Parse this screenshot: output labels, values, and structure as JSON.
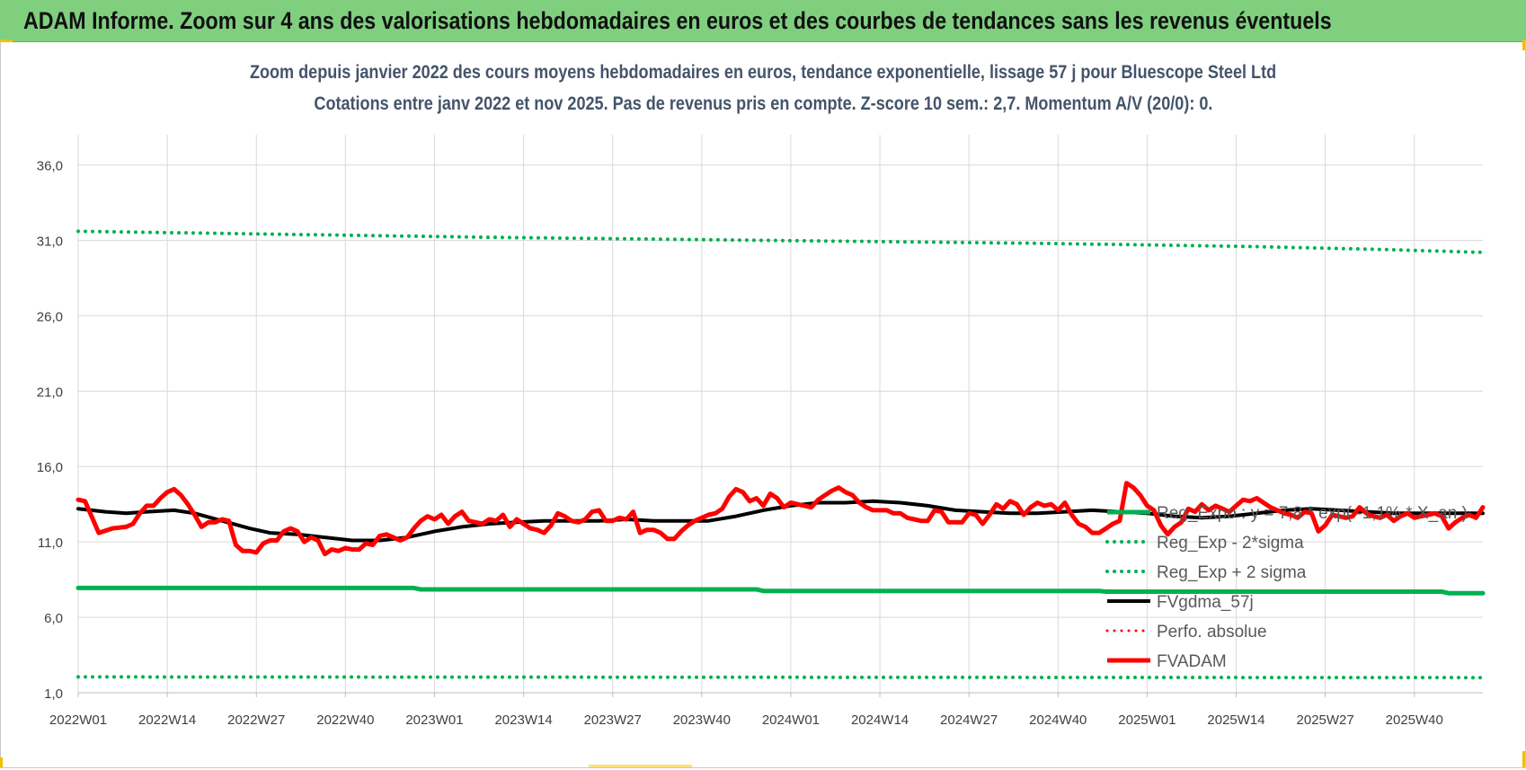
{
  "banner": {
    "title": "ADAM Informe. Zoom sur 4 ans des valorisations hebdomadaires en euros et des courbes de tendances sans les revenus éventuels",
    "background": "#7fcf7f"
  },
  "chart_data": {
    "type": "line",
    "title": "Zoom depuis janvier 2022 des cours moyens hebdomadaires en euros, tendance exponentielle, lissage 57 j pour Bluescope Steel Ltd",
    "subtitle": "Cotations entre janv 2022 et nov 2025. Pas de revenus pris en compte. Z-score 10 sem.: 2,7. Momentum A/V (20/0): 0.",
    "xlabel": "",
    "ylabel": "",
    "ylim": [
      1,
      38
    ],
    "yticks": [
      1,
      6,
      11,
      16,
      21,
      26,
      31,
      36
    ],
    "ytick_labels": [
      "1,0",
      "6,0",
      "11,0",
      "16,0",
      "21,0",
      "26,0",
      "31,0",
      "36,0"
    ],
    "x_range": [
      0,
      205
    ],
    "xticks": [
      0,
      13,
      26,
      39,
      52,
      65,
      78,
      91,
      104,
      117,
      130,
      143,
      156,
      169,
      182,
      195
    ],
    "xtick_labels": [
      "2022W01",
      "2022W14",
      "2022W27",
      "2022W40",
      "2023W01",
      "2023W14",
      "2023W27",
      "2023W40",
      "2024W01",
      "2024W14",
      "2024W27",
      "2024W40",
      "2025W01",
      "2025W14",
      "2025W27",
      "2025W40"
    ],
    "grid": true,
    "legend_position": "bottom-right",
    "series": [
      {
        "name": "Reg_Expo : y = 7,8 * exp( -1,1% * X_an )",
        "color": "#00b050",
        "style": "solid",
        "width": 5,
        "points": [
          [
            0,
            7.95
          ],
          [
            49,
            7.95
          ],
          [
            50,
            7.85
          ],
          [
            99,
            7.85
          ],
          [
            100,
            7.75
          ],
          [
            149,
            7.75
          ],
          [
            150,
            7.7
          ],
          [
            199,
            7.7
          ],
          [
            200,
            7.6
          ],
          [
            205,
            7.6
          ]
        ]
      },
      {
        "name": "Reg_Exp - 2*sigma",
        "color": "#00b050",
        "style": "dotted",
        "width": 4,
        "points": [
          [
            0,
            2.05
          ],
          [
            205,
            2.0
          ]
        ]
      },
      {
        "name": "Reg_Exp + 2 sigma",
        "color": "#00b050",
        "style": "dotted",
        "width": 4,
        "points": [
          [
            0,
            31.6
          ],
          [
            30,
            31.4
          ],
          [
            60,
            31.2
          ],
          [
            100,
            31.0
          ],
          [
            140,
            30.8
          ],
          [
            170,
            30.6
          ],
          [
            190,
            30.4
          ],
          [
            205,
            30.2
          ]
        ]
      },
      {
        "name": "FVgdma_57j",
        "color": "#000000",
        "style": "solid",
        "width": 4,
        "points": [
          [
            0,
            13.2
          ],
          [
            4,
            13.0
          ],
          [
            7,
            12.9
          ],
          [
            10,
            13.0
          ],
          [
            14,
            13.1
          ],
          [
            17,
            12.9
          ],
          [
            21,
            12.4
          ],
          [
            25,
            11.9
          ],
          [
            28,
            11.6
          ],
          [
            32,
            11.5
          ],
          [
            36,
            11.3
          ],
          [
            40,
            11.1
          ],
          [
            44,
            11.1
          ],
          [
            48,
            11.3
          ],
          [
            52,
            11.7
          ],
          [
            56,
            12.0
          ],
          [
            60,
            12.2
          ],
          [
            64,
            12.3
          ],
          [
            68,
            12.4
          ],
          [
            72,
            12.4
          ],
          [
            76,
            12.4
          ],
          [
            80,
            12.5
          ],
          [
            84,
            12.4
          ],
          [
            88,
            12.4
          ],
          [
            92,
            12.4
          ],
          [
            96,
            12.7
          ],
          [
            100,
            13.1
          ],
          [
            104,
            13.4
          ],
          [
            108,
            13.6
          ],
          [
            112,
            13.6
          ],
          [
            116,
            13.7
          ],
          [
            120,
            13.6
          ],
          [
            124,
            13.4
          ],
          [
            128,
            13.1
          ],
          [
            132,
            13.0
          ],
          [
            136,
            12.9
          ],
          [
            140,
            12.9
          ],
          [
            144,
            13.0
          ],
          [
            148,
            13.1
          ],
          [
            152,
            13.0
          ],
          [
            156,
            12.9
          ],
          [
            160,
            12.7
          ],
          [
            164,
            12.6
          ],
          [
            168,
            12.7
          ],
          [
            172,
            12.9
          ],
          [
            176,
            13.1
          ],
          [
            180,
            13.2
          ],
          [
            184,
            13.1
          ],
          [
            188,
            13.0
          ],
          [
            192,
            12.9
          ],
          [
            196,
            12.9
          ],
          [
            200,
            12.9
          ],
          [
            205,
            12.9
          ]
        ]
      },
      {
        "name": "Perfo. absolue",
        "color": "#ff0000",
        "style": "dotted",
        "width": 3,
        "points": []
      },
      {
        "name": "FVADAM",
        "color": "#ff0000",
        "style": "solid",
        "width": 5,
        "points": [
          [
            0,
            13.8
          ],
          [
            1,
            13.7
          ],
          [
            3,
            11.6
          ],
          [
            5,
            11.9
          ],
          [
            7,
            12.0
          ],
          [
            8,
            12.2
          ],
          [
            9,
            12.9
          ],
          [
            10,
            13.4
          ],
          [
            11,
            13.4
          ],
          [
            12,
            13.9
          ],
          [
            13,
            14.3
          ],
          [
            14,
            14.5
          ],
          [
            15,
            14.1
          ],
          [
            16,
            13.5
          ],
          [
            17,
            12.8
          ],
          [
            18,
            12.0
          ],
          [
            19,
            12.3
          ],
          [
            20,
            12.3
          ],
          [
            21,
            12.5
          ],
          [
            22,
            12.4
          ],
          [
            23,
            10.8
          ],
          [
            24,
            10.4
          ],
          [
            25,
            10.4
          ],
          [
            26,
            10.3
          ],
          [
            27,
            10.9
          ],
          [
            28,
            11.1
          ],
          [
            29,
            11.1
          ],
          [
            30,
            11.7
          ],
          [
            31,
            11.9
          ],
          [
            32,
            11.7
          ],
          [
            33,
            11.0
          ],
          [
            34,
            11.3
          ],
          [
            35,
            11.1
          ],
          [
            36,
            10.2
          ],
          [
            37,
            10.5
          ],
          [
            38,
            10.4
          ],
          [
            39,
            10.6
          ],
          [
            40,
            10.5
          ],
          [
            41,
            10.5
          ],
          [
            42,
            10.9
          ],
          [
            43,
            10.8
          ],
          [
            44,
            11.4
          ],
          [
            45,
            11.5
          ],
          [
            46,
            11.3
          ],
          [
            47,
            11.1
          ],
          [
            48,
            11.3
          ],
          [
            49,
            11.9
          ],
          [
            50,
            12.4
          ],
          [
            51,
            12.7
          ],
          [
            52,
            12.5
          ],
          [
            53,
            12.8
          ],
          [
            54,
            12.2
          ],
          [
            55,
            12.7
          ],
          [
            56,
            13.0
          ],
          [
            57,
            12.4
          ],
          [
            58,
            12.3
          ],
          [
            59,
            12.2
          ],
          [
            60,
            12.5
          ],
          [
            61,
            12.4
          ],
          [
            62,
            12.8
          ],
          [
            63,
            12.0
          ],
          [
            64,
            12.5
          ],
          [
            65,
            12.2
          ],
          [
            66,
            11.9
          ],
          [
            67,
            11.8
          ],
          [
            68,
            11.6
          ],
          [
            69,
            12.1
          ],
          [
            70,
            12.9
          ],
          [
            71,
            12.7
          ],
          [
            72,
            12.4
          ],
          [
            73,
            12.3
          ],
          [
            74,
            12.5
          ],
          [
            75,
            13.0
          ],
          [
            76,
            13.1
          ],
          [
            77,
            12.4
          ],
          [
            78,
            12.4
          ],
          [
            79,
            12.6
          ],
          [
            80,
            12.5
          ],
          [
            81,
            13.0
          ],
          [
            82,
            11.6
          ],
          [
            83,
            11.8
          ],
          [
            84,
            11.8
          ],
          [
            85,
            11.6
          ],
          [
            86,
            11.2
          ],
          [
            87,
            11.2
          ],
          [
            88,
            11.7
          ],
          [
            89,
            12.1
          ],
          [
            90,
            12.4
          ],
          [
            91,
            12.6
          ],
          [
            92,
            12.8
          ],
          [
            93,
            12.9
          ],
          [
            94,
            13.2
          ],
          [
            95,
            14.0
          ],
          [
            96,
            14.5
          ],
          [
            97,
            14.3
          ],
          [
            98,
            13.7
          ],
          [
            99,
            13.9
          ],
          [
            100,
            13.4
          ],
          [
            101,
            14.2
          ],
          [
            102,
            13.9
          ],
          [
            103,
            13.3
          ],
          [
            104,
            13.6
          ],
          [
            105,
            13.5
          ],
          [
            106,
            13.4
          ],
          [
            107,
            13.3
          ],
          [
            108,
            13.8
          ],
          [
            109,
            14.1
          ],
          [
            110,
            14.4
          ],
          [
            111,
            14.6
          ],
          [
            112,
            14.3
          ],
          [
            113,
            14.1
          ],
          [
            114,
            13.6
          ],
          [
            115,
            13.3
          ],
          [
            116,
            13.1
          ],
          [
            117,
            13.1
          ],
          [
            118,
            13.1
          ],
          [
            119,
            12.9
          ],
          [
            120,
            12.9
          ],
          [
            121,
            12.6
          ],
          [
            122,
            12.5
          ],
          [
            123,
            12.4
          ],
          [
            124,
            12.4
          ],
          [
            125,
            13.1
          ],
          [
            126,
            13.0
          ],
          [
            127,
            12.3
          ],
          [
            128,
            12.3
          ],
          [
            129,
            12.3
          ],
          [
            130,
            12.9
          ],
          [
            131,
            12.8
          ],
          [
            132,
            12.2
          ],
          [
            133,
            12.8
          ],
          [
            134,
            13.5
          ],
          [
            135,
            13.2
          ],
          [
            136,
            13.7
          ],
          [
            137,
            13.5
          ],
          [
            138,
            12.8
          ],
          [
            139,
            13.3
          ],
          [
            140,
            13.6
          ],
          [
            141,
            13.4
          ],
          [
            142,
            13.5
          ],
          [
            143,
            13.1
          ],
          [
            144,
            13.6
          ],
          [
            145,
            12.8
          ],
          [
            146,
            12.2
          ],
          [
            147,
            12.0
          ],
          [
            148,
            11.6
          ],
          [
            149,
            11.6
          ],
          [
            150,
            11.9
          ],
          [
            151,
            12.2
          ],
          [
            152,
            12.4
          ],
          [
            153,
            14.9
          ],
          [
            154,
            14.6
          ],
          [
            155,
            14.1
          ],
          [
            156,
            13.4
          ],
          [
            157,
            13.1
          ],
          [
            158,
            12.1
          ],
          [
            159,
            11.5
          ],
          [
            160,
            12.0
          ],
          [
            161,
            12.3
          ],
          [
            162,
            13.2
          ],
          [
            163,
            13.0
          ],
          [
            164,
            13.5
          ],
          [
            165,
            13.1
          ],
          [
            166,
            13.4
          ],
          [
            167,
            13.2
          ],
          [
            168,
            13.0
          ],
          [
            169,
            13.4
          ],
          [
            170,
            13.8
          ],
          [
            171,
            13.7
          ],
          [
            172,
            13.9
          ],
          [
            173,
            13.6
          ],
          [
            174,
            13.3
          ],
          [
            175,
            13.1
          ],
          [
            176,
            12.9
          ],
          [
            177,
            12.8
          ],
          [
            178,
            12.6
          ],
          [
            179,
            13.0
          ],
          [
            180,
            12.9
          ],
          [
            181,
            11.7
          ],
          [
            182,
            12.1
          ],
          [
            183,
            12.8
          ],
          [
            184,
            12.7
          ],
          [
            185,
            12.6
          ],
          [
            186,
            12.7
          ],
          [
            187,
            13.3
          ],
          [
            188,
            12.9
          ],
          [
            189,
            12.7
          ],
          [
            190,
            12.6
          ],
          [
            191,
            12.8
          ],
          [
            192,
            12.4
          ],
          [
            193,
            12.7
          ],
          [
            194,
            12.9
          ],
          [
            195,
            12.6
          ],
          [
            196,
            12.7
          ],
          [
            197,
            12.8
          ],
          [
            198,
            12.9
          ],
          [
            199,
            12.7
          ],
          [
            200,
            11.9
          ],
          [
            201,
            12.3
          ],
          [
            202,
            12.6
          ],
          [
            203,
            12.8
          ],
          [
            204,
            12.6
          ],
          [
            205,
            13.3
          ]
        ]
      }
    ]
  }
}
